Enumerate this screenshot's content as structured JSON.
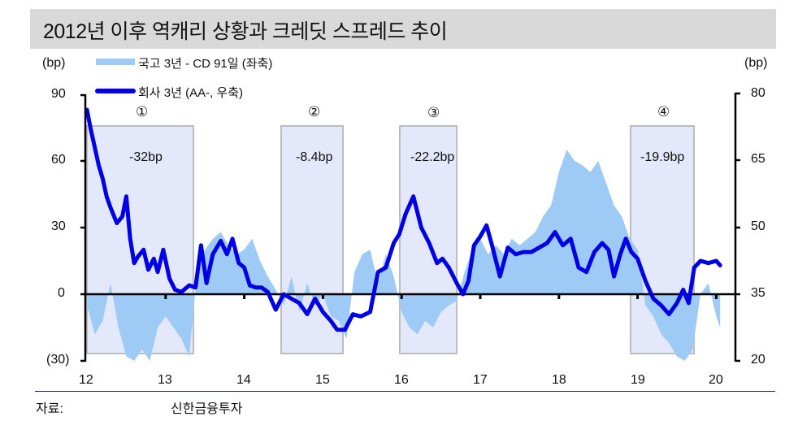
{
  "title": "2012년 이후 역캐리 상황과 크레딧 스프레드 추이",
  "left_unit": "(bp)",
  "right_unit": "(bp)",
  "legend": [
    {
      "label": "국고 3년 - CD 91일 (좌축)",
      "type": "area",
      "color": "#9dcbf5"
    },
    {
      "label": "회사 3년 (AA-, 우축)",
      "type": "line",
      "color": "#0000e6"
    }
  ],
  "left_axis_ticks": [
    "90",
    "60",
    "30",
    "0",
    "(30)"
  ],
  "right_axis_ticks": [
    "80",
    "65",
    "50",
    "35",
    "20"
  ],
  "x_axis_ticks": [
    "12",
    "13",
    "14",
    "15",
    "16",
    "17",
    "18",
    "19",
    "20"
  ],
  "periods": [
    {
      "marker": "①",
      "change": "-32bp"
    },
    {
      "marker": "②",
      "change": "-8.4bp"
    },
    {
      "marker": "③",
      "change": "-22.2bp"
    },
    {
      "marker": "④",
      "change": "-19.9bp"
    }
  ],
  "source_label": "자료:",
  "source_value": "신한금융투자",
  "chart_data": {
    "type": "area+line",
    "title": "2012년 이후 역캐리 상황과 크레딧 스프레드 추이",
    "xlabel": "",
    "ylabel_left": "(bp)",
    "ylabel_right": "(bp)",
    "ylim_left": [
      -30,
      90
    ],
    "ylim_right": [
      20,
      80
    ],
    "x_ticks": [
      "12",
      "13",
      "14",
      "15",
      "16",
      "17",
      "18",
      "19",
      "20"
    ],
    "legend_position": "top-left",
    "grid": false,
    "shaded_periods": [
      {
        "label": "①",
        "start": 2012.0,
        "end": 2013.35,
        "annotation": "-32bp"
      },
      {
        "label": "②",
        "start": 2014.47,
        "end": 2015.25,
        "annotation": "-8.4bp"
      },
      {
        "label": "③",
        "start": 2015.98,
        "end": 2016.7,
        "annotation": "-22.2bp"
      },
      {
        "label": "④",
        "start": 2018.92,
        "end": 2019.72,
        "annotation": "-19.9bp"
      }
    ],
    "series": [
      {
        "name": "국고 3년 - CD 91일 (좌축)",
        "axis": "left",
        "type": "area",
        "x": [
          2012.0,
          2012.1,
          2012.2,
          2012.3,
          2012.4,
          2012.5,
          2012.6,
          2012.7,
          2012.8,
          2012.9,
          2013.0,
          2013.1,
          2013.2,
          2013.3,
          2013.4,
          2013.5,
          2013.6,
          2013.7,
          2013.8,
          2013.9,
          2014.0,
          2014.1,
          2014.2,
          2014.3,
          2014.4,
          2014.5,
          2014.6,
          2014.7,
          2014.8,
          2014.9,
          2015.0,
          2015.1,
          2015.2,
          2015.3,
          2015.4,
          2015.5,
          2015.6,
          2015.7,
          2015.8,
          2015.9,
          2016.0,
          2016.1,
          2016.2,
          2016.3,
          2016.4,
          2016.5,
          2016.6,
          2016.7,
          2016.8,
          2016.9,
          2017.0,
          2017.1,
          2017.2,
          2017.3,
          2017.4,
          2017.5,
          2017.6,
          2017.7,
          2017.8,
          2017.9,
          2018.0,
          2018.1,
          2018.2,
          2018.3,
          2018.4,
          2018.5,
          2018.6,
          2018.7,
          2018.8,
          2018.9,
          2019.0,
          2019.1,
          2019.2,
          2019.3,
          2019.4,
          2019.5,
          2019.6,
          2019.7,
          2019.8,
          2019.9,
          2020.0,
          2020.05
        ],
        "values": [
          -5,
          -18,
          -12,
          5,
          -15,
          -28,
          -30,
          -25,
          -30,
          -15,
          -10,
          -15,
          -20,
          -28,
          10,
          20,
          25,
          28,
          22,
          18,
          20,
          25,
          15,
          8,
          2,
          -5,
          8,
          -8,
          5,
          -5,
          0,
          -10,
          -12,
          -20,
          10,
          18,
          20,
          5,
          18,
          8,
          -8,
          -15,
          -18,
          -12,
          -15,
          -8,
          -5,
          -3,
          10,
          20,
          25,
          18,
          22,
          18,
          25,
          22,
          25,
          28,
          35,
          40,
          55,
          65,
          60,
          58,
          55,
          60,
          50,
          40,
          35,
          25,
          20,
          -5,
          -10,
          -18,
          -22,
          -28,
          -30,
          -25,
          0,
          5,
          -10,
          -15
        ]
      },
      {
        "name": "회사 3년 (AA-, 우축)",
        "axis": "right",
        "type": "line",
        "x": [
          2012.0,
          2012.05,
          2012.1,
          2012.15,
          2012.2,
          2012.25,
          2012.3,
          2012.38,
          2012.45,
          2012.5,
          2012.55,
          2012.6,
          2012.65,
          2012.72,
          2012.78,
          2012.85,
          2012.9,
          2012.97,
          2013.05,
          2013.12,
          2013.2,
          2013.3,
          2013.38,
          2013.45,
          2013.52,
          2013.6,
          2013.7,
          2013.78,
          2013.85,
          2013.93,
          2014.0,
          2014.07,
          2014.15,
          2014.22,
          2014.3,
          2014.4,
          2014.5,
          2014.6,
          2014.7,
          2014.8,
          2014.9,
          2015.0,
          2015.1,
          2015.18,
          2015.28,
          2015.38,
          2015.48,
          2015.6,
          2015.7,
          2015.8,
          2015.9,
          2015.97,
          2016.05,
          2016.15,
          2016.25,
          2016.35,
          2016.45,
          2016.52,
          2016.6,
          2016.7,
          2016.78,
          2016.85,
          2016.92,
          2017.0,
          2017.08,
          2017.15,
          2017.25,
          2017.35,
          2017.45,
          2017.55,
          2017.65,
          2017.75,
          2017.85,
          2017.95,
          2018.05,
          2018.15,
          2018.25,
          2018.35,
          2018.45,
          2018.55,
          2018.63,
          2018.7,
          2018.78,
          2018.85,
          2018.92,
          2019.0,
          2019.1,
          2019.2,
          2019.3,
          2019.4,
          2019.5,
          2019.58,
          2019.65,
          2019.72,
          2019.8,
          2019.9,
          2020.0,
          2020.05
        ],
        "values": [
          76.5,
          72,
          68,
          64,
          61,
          57,
          54.5,
          51,
          52.5,
          57,
          47.5,
          42,
          43.5,
          45,
          40.5,
          43,
          40,
          45,
          38.5,
          36,
          35.5,
          37,
          36.5,
          46,
          37.5,
          44,
          47,
          44,
          47.5,
          42,
          41,
          37,
          36.5,
          36.5,
          35.5,
          31.5,
          35,
          34,
          33,
          30.5,
          34,
          31,
          29,
          27,
          27,
          30.5,
          30,
          31,
          40,
          41,
          46.5,
          48.5,
          53,
          57,
          50,
          46.5,
          42,
          43,
          41,
          37.5,
          35,
          38,
          46,
          48,
          50.5,
          46,
          39,
          45.5,
          44,
          44.5,
          44.5,
          45.5,
          46.5,
          49,
          46,
          47.5,
          41,
          40,
          44.5,
          46.5,
          45,
          39,
          44,
          47.5,
          44.5,
          43,
          38,
          34,
          32.5,
          30.5,
          33,
          36,
          33,
          41,
          42.5,
          42,
          42.5,
          41.5
        ]
      }
    ]
  }
}
